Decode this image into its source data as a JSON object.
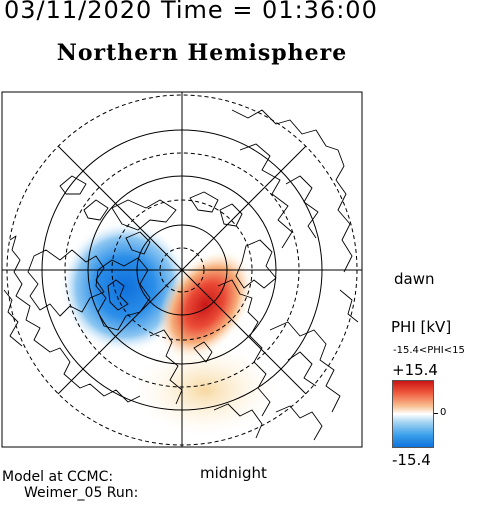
{
  "header": {
    "datetime": "03/11/2020 Time = 01:36:00"
  },
  "plot": {
    "title": "Northern Hemisphere",
    "dawn_label": "dawn",
    "midnight_label": "midnight"
  },
  "colorbar": {
    "title": "PHI [kV]",
    "range_label": "-15.4<PHI<15",
    "max_label": "+15.4",
    "zero_label": "0",
    "min_label": "-15.4",
    "colors": [
      "#cc1414",
      "#ffffff",
      "#1073dd"
    ]
  },
  "footer": {
    "model_label": "Model at CCMC:",
    "run_label": "Weimer_05 Run:"
  }
}
